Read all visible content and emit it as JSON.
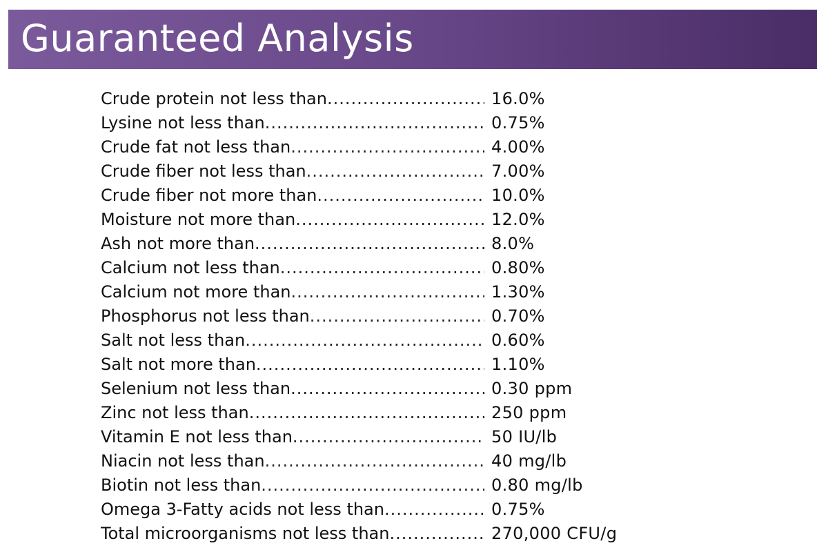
{
  "header": {
    "title": "Guaranteed Analysis"
  },
  "analysis": [
    {
      "label": "Crude protein not less than",
      "value": "16.0%"
    },
    {
      "label": "Lysine not less than",
      "value": "0.75%"
    },
    {
      "label": "Crude fat not less than",
      "value": "4.00%"
    },
    {
      "label": "Crude fiber not less than",
      "value": "7.00%"
    },
    {
      "label": "Crude fiber not more than",
      "value": "10.0%"
    },
    {
      "label": "Moisture not more than",
      "value": "12.0%"
    },
    {
      "label": "Ash not more than",
      "value": "8.0%"
    },
    {
      "label": "Calcium not less than",
      "value": "0.80%"
    },
    {
      "label": "Calcium not more than",
      "value": "1.30%"
    },
    {
      "label": "Phosphorus not less than",
      "value": "0.70%"
    },
    {
      "label": "Salt not less than",
      "value": "0.60%"
    },
    {
      "label": "Salt not more than",
      "value": "1.10%"
    },
    {
      "label": "Selenium not less than",
      "value": "0.30 ppm"
    },
    {
      "label": "Zinc not less than",
      "value": "250 ppm"
    },
    {
      "label": "Vitamin E not less than",
      "value": "50 IU/lb"
    },
    {
      "label": "Niacin not less than",
      "value": "40 mg/lb"
    },
    {
      "label": "Biotin not less than",
      "value": "0.80 mg/lb"
    },
    {
      "label": "Omega 3-Fatty acids not less than",
      "value": "0.75%"
    },
    {
      "label": "Total microorganisms not less than",
      "value": "270,000 CFU/g"
    }
  ]
}
